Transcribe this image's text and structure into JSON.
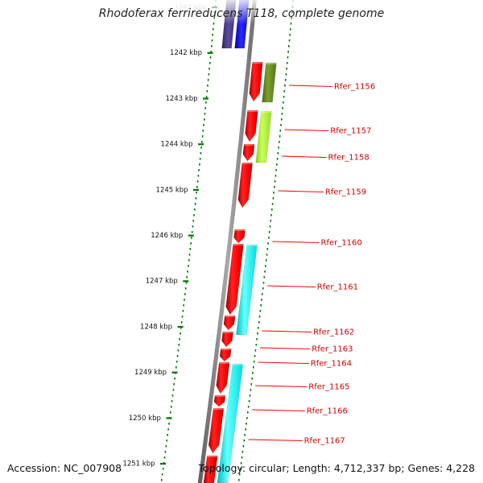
{
  "title": "Rhodoferax ferrireducens T118, complete genome",
  "accession": "Accession: NC_007908",
  "topology": "Topology: circular; Length: 4,712,337 bp; Genes: 4,228",
  "scale_labels": [
    "1241 kbp",
    "1242 kbp",
    "1243 kbp",
    "1244 kbp",
    "1245 kbp",
    "1246 kbp",
    "1247 kbp",
    "1248 kbp",
    "1249 kbp",
    "1250 kbp",
    "1251 kbp"
  ],
  "genes": [
    {
      "label": "Rfer_1156",
      "color": "#ff0000"
    },
    {
      "label": "Rfer_1157",
      "color": "#ff0000"
    },
    {
      "label": "Rfer_1158",
      "color": "#ff0000"
    },
    {
      "label": "Rfer_1159",
      "color": "#ff0000"
    },
    {
      "label": "Rfer_1160",
      "color": "#ff0000"
    },
    {
      "label": "Rfer_1161",
      "color": "#ff0000"
    },
    {
      "label": "Rfer_1162",
      "color": "#ff0000"
    },
    {
      "label": "Rfer_1163",
      "color": "#ff0000"
    },
    {
      "label": "Rfer_1164",
      "color": "#ff0000"
    },
    {
      "label": "Rfer_1165",
      "color": "#ff0000"
    },
    {
      "label": "Rfer_1166",
      "color": "#ff0000"
    },
    {
      "label": "Rfer_1167",
      "color": "#ff0000"
    }
  ],
  "colors": {
    "gene": "#ff0000",
    "gene_label": "#cc0000",
    "backbone": "#888888",
    "scale_dots": "#007700",
    "blue_gene": "#0000ff",
    "purple_gene": "#4a3d8f",
    "olive_feature": "#6b8e23",
    "lime_feature": "#adff2f",
    "cyan_feature": "#00ffff"
  }
}
